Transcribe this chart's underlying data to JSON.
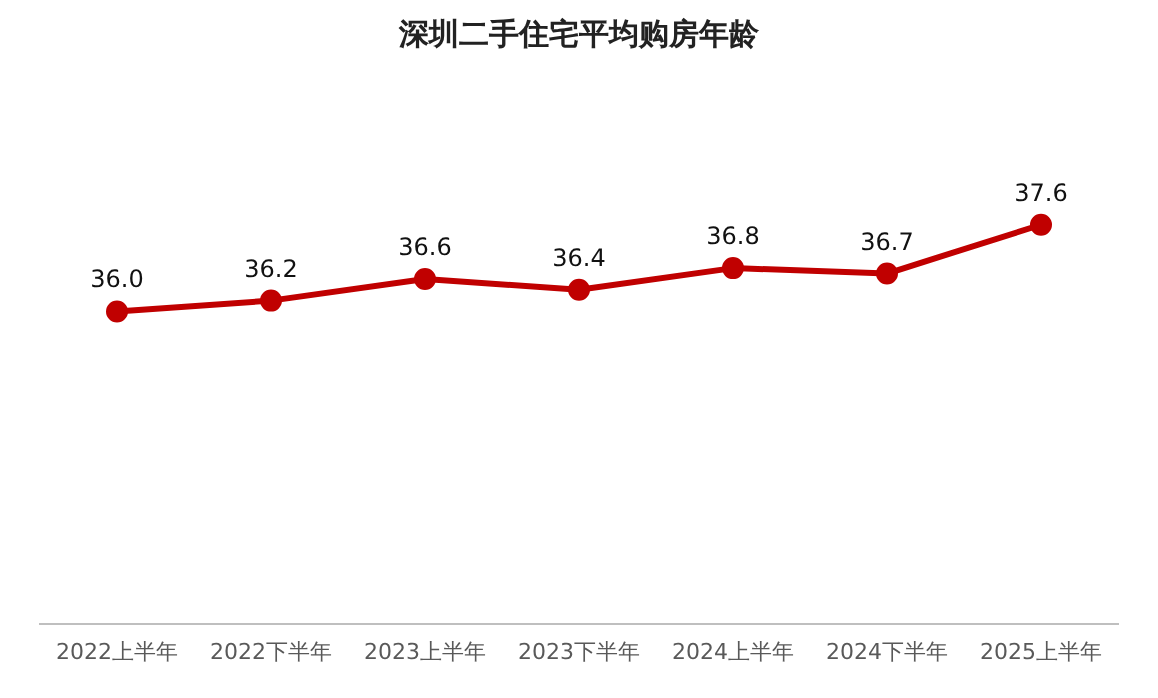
{
  "chart_data": {
    "type": "line",
    "title": "深圳二手住宅平均购房年龄",
    "categories": [
      "2022上半年",
      "2022下半年",
      "2023上半年",
      "2023下半年",
      "2024上半年",
      "2024下半年",
      "2025上半年"
    ],
    "series": [
      {
        "color": "#c00000",
        "values": [
          36.0,
          36.2,
          36.6,
          36.4,
          36.8,
          36.7,
          37.6
        ],
        "value_labels": [
          "36.0",
          "36.2",
          "36.6",
          "36.4",
          "36.8",
          "36.7",
          "37.6"
        ]
      }
    ],
    "marker": "circle",
    "grid": false,
    "legend": false
  }
}
